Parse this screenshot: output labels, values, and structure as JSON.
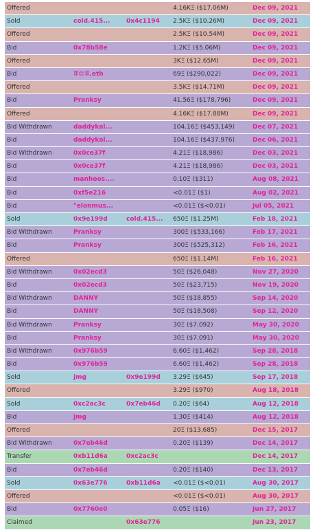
{
  "type_colors": {
    "Offered": "#d9b3ae",
    "Sold": "#a9cfdb",
    "Bid": "#b7a9d4",
    "Bid Withdrawn": "#b7a9d4",
    "Transfer": "#acd7b5",
    "Claimed": "#acd7b5"
  },
  "rows": [
    {
      "type": "Offered",
      "amount": "4.16KΞ ($17.06M)",
      "date": "Dec 09, 2021"
    },
    {
      "type": "Sold",
      "from": "cold.415...",
      "to": "0x4c1194",
      "amount": "2.5KΞ ($10.26M)",
      "date": "Dec 09, 2021"
    },
    {
      "type": "Offered",
      "amount": "2.5KΞ ($10.54M)",
      "date": "Dec 09, 2021"
    },
    {
      "type": "Bid",
      "from": "0x78b58e",
      "amount": "1.2KΞ ($5.06M)",
      "date": "Dec 09, 2021"
    },
    {
      "type": "Offered",
      "amount": "3KΞ ($12.65M)",
      "date": "Dec 09, 2021"
    },
    {
      "type": "Bid",
      "from": "⠿😊⠿.eth",
      "amount": "69Ξ ($290,022)",
      "date": "Dec 09, 2021"
    },
    {
      "type": "Offered",
      "amount": "3.5KΞ ($14.71M)",
      "date": "Dec 09, 2021"
    },
    {
      "type": "Bid",
      "from": "Pranksy",
      "amount": "41.56Ξ ($178,796)",
      "date": "Dec 09, 2021"
    },
    {
      "type": "Offered",
      "amount": "4.16KΞ ($17.88M)",
      "date": "Dec 09, 2021"
    },
    {
      "type": "Bid Withdrawn",
      "from": "daddykal...",
      "amount": "104.16Ξ ($453,149)",
      "date": "Dec 07, 2021"
    },
    {
      "type": "Bid",
      "from": "daddykal...",
      "amount": "104.16Ξ ($437,976)",
      "date": "Dec 06, 2021"
    },
    {
      "type": "Bid Withdrawn",
      "from": "0x0ce37f",
      "amount": "4.21Ξ ($18,986)",
      "date": "Dec 03, 2021"
    },
    {
      "type": "Bid",
      "from": "0x0ce37f",
      "amount": "4.21Ξ ($18,986)",
      "date": "Dec 03, 2021"
    },
    {
      "type": "Bid",
      "from": "manhoos....",
      "amount": "0.10Ξ ($311)",
      "date": "Aug 08, 2021"
    },
    {
      "type": "Bid",
      "from": "0xf5e216",
      "amount": "<0.01Ξ ($1)",
      "date": "Aug 02, 2021"
    },
    {
      "type": "Bid",
      "from": "\"elonmus...",
      "amount": "<0.01Ξ ($<0.01)",
      "date": "Jul 05, 2021"
    },
    {
      "type": "Sold",
      "from": "0x9e199d",
      "to": "cold.415...",
      "amount": "650Ξ ($1.25M)",
      "date": "Feb 18, 2021"
    },
    {
      "type": "Bid Withdrawn",
      "from": "Pranksy",
      "amount": "300Ξ ($533,166)",
      "date": "Feb 17, 2021"
    },
    {
      "type": "Bid",
      "from": "Pranksy",
      "amount": "300Ξ ($525,312)",
      "date": "Feb 16, 2021"
    },
    {
      "type": "Offered",
      "amount": "650Ξ ($1.14M)",
      "date": "Feb 16, 2021"
    },
    {
      "type": "Bid Withdrawn",
      "from": "0x02ecd3",
      "amount": "50Ξ ($26,048)",
      "date": "Nov 27, 2020"
    },
    {
      "type": "Bid",
      "from": "0x02ecd3",
      "amount": "50Ξ ($23,715)",
      "date": "Nov 19, 2020"
    },
    {
      "type": "Bid Withdrawn",
      "from": "DANNY",
      "amount": "50Ξ ($18,855)",
      "date": "Sep 14, 2020"
    },
    {
      "type": "Bid",
      "from": "DANNY",
      "amount": "50Ξ ($18,508)",
      "date": "Sep 12, 2020"
    },
    {
      "type": "Bid Withdrawn",
      "from": "Pranksy",
      "amount": "30Ξ ($7,092)",
      "date": "May 30, 2020"
    },
    {
      "type": "Bid",
      "from": "Pranksy",
      "amount": "30Ξ ($7,091)",
      "date": "May 30, 2020"
    },
    {
      "type": "Bid Withdrawn",
      "from": "0x976b59",
      "amount": "6.60Ξ ($1,462)",
      "date": "Sep 28, 2018"
    },
    {
      "type": "Bid",
      "from": "0x976b59",
      "amount": "6.60Ξ ($1,462)",
      "date": "Sep 28, 2018"
    },
    {
      "type": "Sold",
      "from": "jmg",
      "to": "0x9e199d",
      "amount": "3.29Ξ ($645)",
      "date": "Sep 17, 2018"
    },
    {
      "type": "Offered",
      "amount": "3.29Ξ ($970)",
      "date": "Aug 18, 2018"
    },
    {
      "type": "Sold",
      "from": "0xc2ac3c",
      "to": "0x7eb46d",
      "amount": "0.20Ξ ($64)",
      "date": "Aug 12, 2018"
    },
    {
      "type": "Bid",
      "from": "jmg",
      "amount": "1.30Ξ ($414)",
      "date": "Aug 12, 2018"
    },
    {
      "type": "Offered",
      "amount": "20Ξ ($13,685)",
      "date": "Dec 15, 2017"
    },
    {
      "type": "Bid Withdrawn",
      "from": "0x7eb46d",
      "amount": "0.20Ξ ($139)",
      "date": "Dec 14, 2017"
    },
    {
      "type": "Transfer",
      "from": "0xb11d6a",
      "to": "0xc2ac3c",
      "date": "Dec 14, 2017"
    },
    {
      "type": "Bid",
      "from": "0x7eb46d",
      "amount": "0.20Ξ ($140)",
      "date": "Dec 13, 2017"
    },
    {
      "type": "Sold",
      "from": "0x63e776",
      "to": "0xb11d6a",
      "amount": "<0.01Ξ ($<0.01)",
      "date": "Aug 30, 2017"
    },
    {
      "type": "Offered",
      "amount": "<0.01Ξ ($<0.01)",
      "date": "Aug 30, 2017"
    },
    {
      "type": "Bid",
      "from": "0x7760e0",
      "amount": "0.05Ξ ($16)",
      "date": "Jun 27, 2017"
    },
    {
      "type": "Claimed",
      "to": "0x63e776",
      "date": "Jun 23, 2017"
    }
  ]
}
